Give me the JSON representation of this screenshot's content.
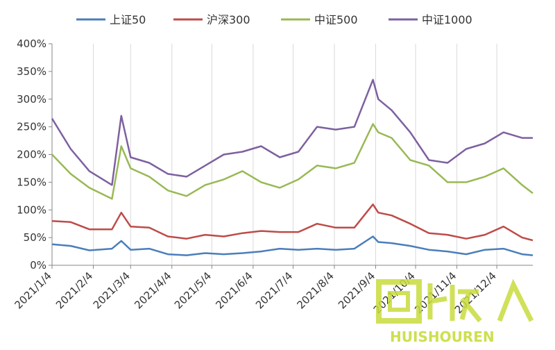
{
  "chart_data": {
    "type": "line",
    "title": "",
    "xlabel": "",
    "ylabel": "",
    "ylim": [
      0,
      400
    ],
    "y_ticks": [
      "0%",
      "50%",
      "100%",
      "150%",
      "200%",
      "250%",
      "300%",
      "350%",
      "400%"
    ],
    "x_ticks": [
      "2021/1/4",
      "2021/2/4",
      "2021/3/4",
      "2021/4/4",
      "2021/5/4",
      "2021/6/4",
      "2021/7/4",
      "2021/8/4",
      "2021/9/4",
      "2021/10/4",
      "2021/11/4",
      "2021/12/4"
    ],
    "grid": {
      "horizontal": false,
      "vertical": true
    },
    "legend_position": "top",
    "x": [
      "2021/1/4",
      "2021/1/18",
      "2021/2/1",
      "2021/2/18",
      "2021/2/25",
      "2021/3/4",
      "2021/3/18",
      "2021/4/1",
      "2021/4/15",
      "2021/4/29",
      "2021/5/13",
      "2021/5/27",
      "2021/6/10",
      "2021/6/24",
      "2021/7/8",
      "2021/7/22",
      "2021/8/5",
      "2021/8/19",
      "2021/9/2",
      "2021/9/6",
      "2021/9/16",
      "2021/9/30",
      "2021/10/14",
      "2021/10/28",
      "2021/11/11",
      "2021/11/25",
      "2021/12/9",
      "2021/12/23",
      "2021/12/31"
    ],
    "series": [
      {
        "name": "上证50",
        "color": "#4a7ebb",
        "values": [
          38,
          35,
          27,
          30,
          44,
          28,
          30,
          20,
          18,
          22,
          20,
          22,
          25,
          30,
          28,
          30,
          28,
          30,
          52,
          42,
          40,
          35,
          28,
          25,
          20,
          28,
          30,
          20,
          18
        ]
      },
      {
        "name": "沪深300",
        "color": "#be4b48",
        "values": [
          80,
          78,
          65,
          65,
          95,
          70,
          68,
          52,
          48,
          55,
          52,
          58,
          62,
          60,
          60,
          75,
          68,
          68,
          110,
          95,
          90,
          75,
          58,
          55,
          48,
          55,
          70,
          50,
          45
        ]
      },
      {
        "name": "中证500",
        "color": "#98b954",
        "values": [
          200,
          165,
          140,
          120,
          215,
          175,
          160,
          135,
          125,
          145,
          155,
          170,
          150,
          140,
          155,
          180,
          175,
          185,
          255,
          240,
          230,
          190,
          180,
          150,
          150,
          160,
          175,
          145,
          130
        ]
      },
      {
        "name": "中证1000",
        "color": "#7d60a0",
        "values": [
          265,
          210,
          170,
          145,
          270,
          195,
          185,
          165,
          160,
          180,
          200,
          205,
          215,
          195,
          205,
          250,
          245,
          250,
          335,
          300,
          280,
          240,
          190,
          185,
          210,
          220,
          240,
          230,
          230
        ]
      }
    ]
  },
  "watermark": {
    "cn_text": "回收人",
    "en_text": "HUISHOUREN"
  }
}
